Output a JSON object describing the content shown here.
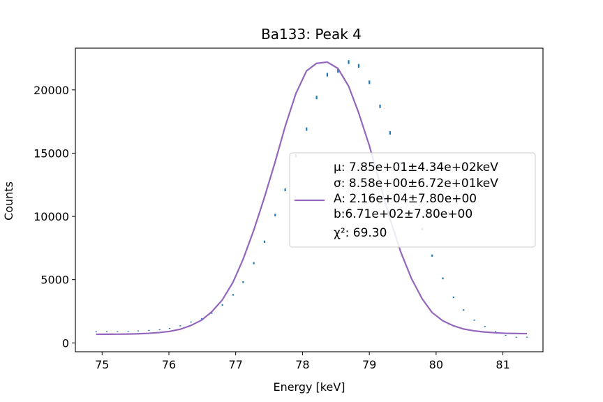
{
  "chart_data": {
    "type": "scatter",
    "title": "Ba133: Peak 4",
    "xlabel": "Energy [keV]",
    "ylabel": "Counts",
    "xlim": [
      74.6,
      81.6
    ],
    "ylim": [
      -700,
      23300
    ],
    "xticks": [
      75,
      76,
      77,
      78,
      79,
      80,
      81
    ],
    "yticks": [
      0,
      5000,
      10000,
      15000,
      20000
    ],
    "grid": false,
    "legend_placement": "right",
    "colors": {
      "data": "#1f77b4",
      "fit": "#9467bd"
    },
    "series": [
      {
        "kind": "errorbar-points",
        "x": [
          74.91,
          75.07,
          75.23,
          75.39,
          75.54,
          75.7,
          75.86,
          76.01,
          76.17,
          76.33,
          76.49,
          76.64,
          76.8,
          76.96,
          77.11,
          77.27,
          77.43,
          77.59,
          77.74,
          77.9,
          78.06,
          78.21,
          78.37,
          78.53,
          78.69,
          78.84,
          79.0,
          79.16,
          79.31,
          79.47,
          79.63,
          79.79,
          79.94,
          80.1,
          80.26,
          80.41,
          80.57,
          80.73,
          80.89,
          81.04,
          81.2,
          81.36
        ],
        "y": [
          900,
          880,
          900,
          910,
          950,
          990,
          1040,
          1150,
          1350,
          1650,
          1900,
          2350,
          3000,
          3800,
          4800,
          6300,
          8000,
          10100,
          12100,
          14800,
          16900,
          19400,
          21200,
          21500,
          22200,
          21900,
          20600,
          18700,
          16600,
          14200,
          11600,
          9000,
          6900,
          5100,
          3600,
          2600,
          1800,
          1300,
          900,
          600,
          450,
          450
        ],
        "err": [
          30,
          30,
          30,
          30,
          31,
          31,
          32,
          34,
          37,
          41,
          44,
          48,
          55,
          62,
          69,
          79,
          89,
          100,
          110,
          122,
          130,
          139,
          146,
          147,
          149,
          148,
          144,
          137,
          129,
          119,
          108,
          95,
          83,
          71,
          60,
          51,
          42,
          36,
          30,
          25,
          21,
          21
        ]
      },
      {
        "kind": "fit-line",
        "legend": [
          "μ: 7.85e+01±4.34e+02keV",
          "σ: 8.58e+00±6.72e+01keV",
          "A: 2.16e+04±7.80e+00",
          "b:6.71e+02±7.80e+00",
          "χ²: 69.30"
        ],
        "x": [
          74.91,
          75.07,
          75.23,
          75.39,
          75.54,
          75.7,
          75.86,
          76.01,
          76.17,
          76.33,
          76.49,
          76.64,
          76.8,
          76.96,
          77.11,
          77.27,
          77.43,
          77.59,
          77.74,
          77.9,
          78.06,
          78.21,
          78.37,
          78.53,
          78.69,
          78.84,
          79.0,
          79.16,
          79.31,
          79.47,
          79.63,
          79.79,
          79.94,
          80.1,
          80.26,
          80.41,
          80.57,
          80.73,
          80.89,
          81.04,
          81.2,
          81.36
        ],
        "y": [
          680,
          685,
          690,
          700,
          720,
          760,
          820,
          910,
          1080,
          1380,
          1800,
          2450,
          3400,
          4800,
          6600,
          8900,
          11500,
          14300,
          17100,
          19700,
          21500,
          22100,
          22200,
          21700,
          20300,
          18200,
          15600,
          12600,
          9800,
          7200,
          5100,
          3500,
          2400,
          1750,
          1350,
          1100,
          950,
          860,
          800,
          760,
          740,
          730
        ]
      }
    ]
  }
}
